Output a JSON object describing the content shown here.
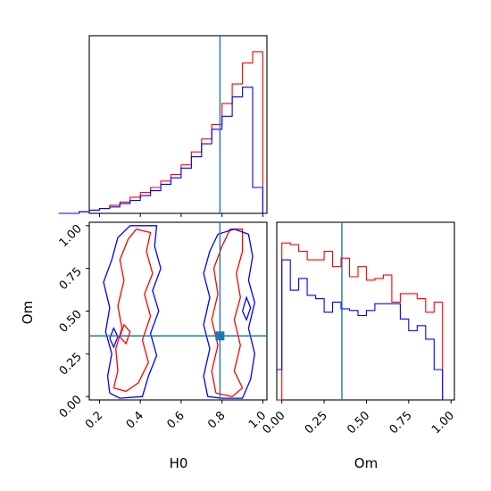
{
  "chart_data": {
    "type": "corner",
    "parameters": [
      "H0",
      "Om"
    ],
    "truths": {
      "H0": 0.79,
      "Om": 0.355
    },
    "colors": {
      "series_a": "#ff0000",
      "series_b": "#0000ff",
      "truth": "#1f77b4"
    },
    "grid": false,
    "panels": [
      {
        "id": "hist-H0",
        "type": "step-histogram",
        "xlim": [
          0.15,
          1.02
        ],
        "bin_edges": [
          0.0,
          0.05,
          0.1,
          0.15,
          0.2,
          0.25,
          0.3,
          0.35,
          0.4,
          0.45,
          0.5,
          0.55,
          0.6,
          0.65,
          0.7,
          0.75,
          0.8,
          0.85,
          0.9,
          0.95,
          1.0
        ],
        "series": [
          {
            "color": "red",
            "values": [
              0.0,
              0.0,
              0.01,
              0.02,
              0.03,
              0.05,
              0.07,
              0.1,
              0.13,
              0.16,
              0.2,
              0.24,
              0.3,
              0.38,
              0.46,
              0.55,
              0.68,
              0.8,
              0.93,
              1.0
            ]
          },
          {
            "color": "blue",
            "values": [
              0.0,
              0.0,
              0.01,
              0.02,
              0.03,
              0.04,
              0.06,
              0.08,
              0.11,
              0.14,
              0.18,
              0.22,
              0.28,
              0.35,
              0.43,
              0.52,
              0.6,
              0.72,
              0.78,
              0.16
            ]
          }
        ]
      },
      {
        "id": "contour-H0-Om",
        "type": "contour",
        "xlabel": "H0",
        "ylabel": "Om",
        "xlim": [
          0.15,
          1.02
        ],
        "ylim": [
          -0.02,
          1.02
        ],
        "xticks": [
          "0.2",
          "0.4",
          "0.6",
          "0.8",
          "1.0"
        ],
        "xtick_values": [
          0.2,
          0.4,
          0.6,
          0.8,
          1.0
        ],
        "yticks": [
          "0.00",
          "0.25",
          "0.50",
          "0.75",
          "1.00"
        ],
        "ytick_values": [
          0.0,
          0.25,
          0.5,
          0.75,
          1.0
        ],
        "contours": [
          {
            "color": "red",
            "points": [
              [
                0.27,
                0.05
              ],
              [
                0.29,
                0.15
              ],
              [
                0.28,
                0.28
              ],
              [
                0.31,
                0.4
              ],
              [
                0.29,
                0.53
              ],
              [
                0.32,
                0.68
              ],
              [
                0.3,
                0.8
              ],
              [
                0.34,
                0.92
              ],
              [
                0.38,
                0.98
              ],
              [
                0.45,
                0.96
              ],
              [
                0.43,
                0.85
              ],
              [
                0.46,
                0.72
              ],
              [
                0.42,
                0.6
              ],
              [
                0.45,
                0.47
              ],
              [
                0.41,
                0.33
              ],
              [
                0.44,
                0.2
              ],
              [
                0.39,
                0.08
              ],
              [
                0.33,
                0.03
              ],
              [
                0.27,
                0.05
              ]
            ]
          },
          {
            "color": "blue",
            "points": [
              [
                0.25,
                0.02
              ],
              [
                0.24,
                0.12
              ],
              [
                0.26,
                0.25
              ],
              [
                0.23,
                0.38
              ],
              [
                0.25,
                0.52
              ],
              [
                0.22,
                0.67
              ],
              [
                0.26,
                0.8
              ],
              [
                0.29,
                0.93
              ],
              [
                0.35,
                1.0
              ],
              [
                0.48,
                1.0
              ],
              [
                0.47,
                0.88
              ],
              [
                0.5,
                0.75
              ],
              [
                0.46,
                0.62
              ],
              [
                0.49,
                0.5
              ],
              [
                0.45,
                0.37
              ],
              [
                0.48,
                0.24
              ],
              [
                0.44,
                0.12
              ],
              [
                0.41,
                0.0
              ],
              [
                0.3,
                -0.01
              ],
              [
                0.25,
                0.02
              ]
            ]
          },
          {
            "color": "red",
            "points": [
              [
                0.77,
                0.02
              ],
              [
                0.75,
                0.15
              ],
              [
                0.78,
                0.3
              ],
              [
                0.75,
                0.45
              ],
              [
                0.78,
                0.6
              ],
              [
                0.76,
                0.75
              ],
              [
                0.8,
                0.88
              ],
              [
                0.84,
                0.98
              ],
              [
                0.9,
                0.98
              ],
              [
                0.9,
                0.85
              ],
              [
                0.87,
                0.72
              ],
              [
                0.89,
                0.58
              ],
              [
                0.86,
                0.45
              ],
              [
                0.89,
                0.3
              ],
              [
                0.86,
                0.15
              ],
              [
                0.9,
                0.05
              ],
              [
                0.85,
                0.0
              ],
              [
                0.77,
                0.02
              ]
            ]
          },
          {
            "color": "blue",
            "points": [
              [
                0.73,
                0.0
              ],
              [
                0.71,
                0.12
              ],
              [
                0.74,
                0.28
              ],
              [
                0.71,
                0.42
              ],
              [
                0.74,
                0.58
              ],
              [
                0.71,
                0.72
              ],
              [
                0.74,
                0.85
              ],
              [
                0.78,
                0.95
              ],
              [
                0.86,
                0.98
              ],
              [
                0.93,
                0.95
              ],
              [
                0.95,
                0.82
              ],
              [
                0.93,
                0.68
              ],
              [
                0.96,
                0.55
              ],
              [
                0.93,
                0.4
              ],
              [
                0.96,
                0.25
              ],
              [
                0.94,
                0.1
              ],
              [
                0.9,
                -0.01
              ],
              [
                0.8,
                -0.01
              ],
              [
                0.73,
                0.0
              ]
            ]
          },
          {
            "color": "red",
            "points": [
              [
                0.3,
                0.35
              ],
              [
                0.32,
                0.42
              ],
              [
                0.35,
                0.38
              ],
              [
                0.33,
                0.31
              ],
              [
                0.3,
                0.35
              ]
            ]
          },
          {
            "color": "blue",
            "points": [
              [
                0.25,
                0.34
              ],
              [
                0.27,
                0.4
              ],
              [
                0.29,
                0.35
              ],
              [
                0.27,
                0.29
              ],
              [
                0.25,
                0.34
              ]
            ]
          },
          {
            "color": "blue",
            "points": [
              [
                0.9,
                0.5
              ],
              [
                0.92,
                0.58
              ],
              [
                0.94,
                0.52
              ],
              [
                0.92,
                0.45
              ],
              [
                0.9,
                0.5
              ]
            ]
          }
        ]
      },
      {
        "id": "hist-Om",
        "type": "step-histogram",
        "xlabel": "Om",
        "xlim": [
          -0.03,
          1.02
        ],
        "xticks": [
          "0.00",
          "0.25",
          "0.50",
          "0.75",
          "1.00"
        ],
        "xtick_values": [
          0.0,
          0.25,
          0.5,
          0.75,
          1.0
        ],
        "bin_edges": [
          -0.03,
          0.0,
          0.05,
          0.1,
          0.15,
          0.2,
          0.25,
          0.3,
          0.35,
          0.4,
          0.45,
          0.5,
          0.55,
          0.6,
          0.65,
          0.7,
          0.75,
          0.8,
          0.85,
          0.9,
          0.95,
          1.0
        ],
        "series": [
          {
            "color": "red",
            "values": [
              0.0,
              0.93,
              0.92,
              0.88,
              0.83,
              0.83,
              0.88,
              0.79,
              0.84,
              0.73,
              0.79,
              0.71,
              0.72,
              0.74,
              0.58,
              0.63,
              0.63,
              0.6,
              0.52,
              0.58,
              0.0
            ]
          },
          {
            "color": "blue",
            "values": [
              0.18,
              0.83,
              0.65,
              0.72,
              0.62,
              0.6,
              0.52,
              0.58,
              0.54,
              0.53,
              0.5,
              0.53,
              0.57,
              0.57,
              0.57,
              0.48,
              0.41,
              0.44,
              0.36,
              0.18,
              0.0
            ]
          }
        ]
      }
    ]
  }
}
